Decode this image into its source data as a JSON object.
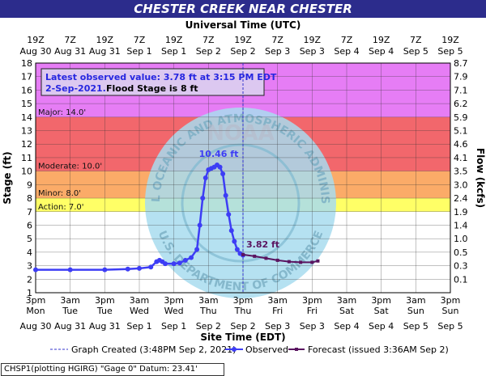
{
  "title": "CHESTER CREEK NEAR CHESTER",
  "top_axis_title": "Universal Time (UTC)",
  "bottom_axis_title": "Site Time (EDT)",
  "left_axis_title": "Stage (ft)",
  "right_axis_title": "Flow (kcfs)",
  "info_box": {
    "line1": "Latest observed value: 3.78 ft at 3:15 PM EDT",
    "line2_date": "2-Sep-2021.",
    "line2_rest": "Flood Stage is 8 ft"
  },
  "bands": [
    {
      "name": "Major: 14.0'",
      "from": 14,
      "to": 18,
      "color": "#e67df5"
    },
    {
      "name": "Moderate: 10.0'",
      "from": 10,
      "to": 14,
      "color": "#f2676c"
    },
    {
      "name": "Minor: 8.0'",
      "from": 8,
      "to": 10,
      "color": "#fbab68"
    },
    {
      "name": "Action: 7.0'",
      "from": 7,
      "to": 8,
      "color": "#ffff66"
    }
  ],
  "watermark_text": [
    "NATIONAL OCEANIC AND ATMOSPHERIC ADMINISTRATION",
    "U.S. DEPARTMENT OF COMMERCE",
    "NOAA"
  ],
  "top_ticks": [
    {
      "t": "19Z",
      "d": "Aug 30"
    },
    {
      "t": "7Z",
      "d": "Aug 31"
    },
    {
      "t": "19Z",
      "d": "Aug 31"
    },
    {
      "t": "7Z",
      "d": "Sep 1"
    },
    {
      "t": "19Z",
      "d": "Sep 1"
    },
    {
      "t": "7Z",
      "d": "Sep 2"
    },
    {
      "t": "19Z",
      "d": "Sep 2"
    },
    {
      "t": "7Z",
      "d": "Sep 3"
    },
    {
      "t": "19Z",
      "d": "Sep 3"
    },
    {
      "t": "7Z",
      "d": "Sep 4"
    },
    {
      "t": "19Z",
      "d": "Sep 4"
    },
    {
      "t": "7Z",
      "d": "Sep 5"
    },
    {
      "t": "19Z",
      "d": "Sep 5"
    }
  ],
  "bottom_ticks": [
    {
      "t": "3pm",
      "w": "Mon",
      "d": "Aug 30"
    },
    {
      "t": "3am",
      "w": "Tue",
      "d": "Aug 31"
    },
    {
      "t": "3pm",
      "w": "Tue",
      "d": "Aug 31"
    },
    {
      "t": "3am",
      "w": "Wed",
      "d": "Sep 1"
    },
    {
      "t": "3pm",
      "w": "Wed",
      "d": "Sep 1"
    },
    {
      "t": "3am",
      "w": "Thu",
      "d": "Sep 2"
    },
    {
      "t": "3pm",
      "w": "Thu",
      "d": "Sep 2"
    },
    {
      "t": "3am",
      "w": "Fri",
      "d": "Sep 3"
    },
    {
      "t": "3pm",
      "w": "Fri",
      "d": "Sep 3"
    },
    {
      "t": "3am",
      "w": "Sat",
      "d": "Sep 4"
    },
    {
      "t": "3pm",
      "w": "Sat",
      "d": "Sep 4"
    },
    {
      "t": "3am",
      "w": "Sun",
      "d": "Sep 5"
    },
    {
      "t": "3pm",
      "w": "Sun",
      "d": "Sep 5"
    }
  ],
  "flow_ticks": [
    {
      "stage": 18,
      "label": "8.7"
    },
    {
      "stage": 17,
      "label": "7.9"
    },
    {
      "stage": 16,
      "label": "7.1"
    },
    {
      "stage": 15,
      "label": "6.2"
    },
    {
      "stage": 14,
      "label": "5.9"
    },
    {
      "stage": 13,
      "label": "5.1"
    },
    {
      "stage": 12,
      "label": "4.6"
    },
    {
      "stage": 11,
      "label": "4.1"
    },
    {
      "stage": 10,
      "label": "3.5"
    },
    {
      "stage": 9,
      "label": "3.0"
    },
    {
      "stage": 8,
      "label": "2.4"
    },
    {
      "stage": 7,
      "label": "1.9"
    },
    {
      "stage": 6,
      "label": "1.4"
    },
    {
      "stage": 5,
      "label": "1.0"
    },
    {
      "stage": 4,
      "label": "0.5"
    },
    {
      "stage": 3,
      "label": "0.3"
    },
    {
      "stage": 2,
      "label": "0.1"
    }
  ],
  "legend": {
    "created": "Graph Created (3:48PM Sep 2, 2021)",
    "observed": "Observed",
    "forecast": "Forecast (issued 3:36AM Sep 2)"
  },
  "footer": "CHSP1(plotting HGIRG) \"Gage 0\" Datum: 23.41'",
  "colors": {
    "observed": "#3d3df5",
    "forecast": "#5a1460",
    "grid": "#333333",
    "title_bg": "#2c2c8c",
    "watermark": "#a8dcee"
  },
  "chart_data": {
    "type": "line",
    "x_unit": "hours since Mon Aug 30 3pm EDT",
    "ylim": [
      1,
      18
    ],
    "xlim": [
      0,
      144
    ],
    "grid": true,
    "series": [
      {
        "name": "Observed",
        "x": [
          0,
          12,
          24,
          32,
          36,
          40,
          42,
          43,
          44,
          45,
          48,
          50,
          52,
          54,
          56,
          57,
          58,
          59,
          60,
          61,
          62,
          63,
          64,
          65,
          66,
          67,
          68,
          69,
          70,
          71,
          72
        ],
        "values": [
          2.7,
          2.7,
          2.7,
          2.75,
          2.8,
          2.9,
          3.3,
          3.4,
          3.3,
          3.15,
          3.15,
          3.2,
          3.4,
          3.6,
          4.2,
          6.0,
          8.0,
          9.5,
          10.1,
          10.2,
          10.3,
          10.46,
          10.3,
          9.8,
          8.2,
          6.8,
          5.6,
          4.8,
          4.2,
          3.9,
          3.78
        ]
      },
      {
        "name": "Forecast",
        "x": [
          72,
          76,
          80,
          84,
          88,
          92,
          96,
          98
        ],
        "values": [
          3.82,
          3.7,
          3.55,
          3.4,
          3.3,
          3.25,
          3.25,
          3.35
        ]
      }
    ],
    "annotations": [
      {
        "label": "10.46 ft",
        "x": 63,
        "y": 10.46
      },
      {
        "label": "3.82 ft",
        "x": 72,
        "y": 3.82
      }
    ],
    "graph_created_x": 72
  }
}
